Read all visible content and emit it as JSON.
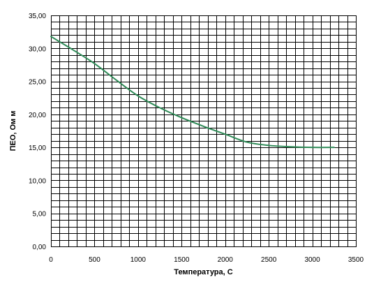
{
  "chart_data": {
    "type": "line",
    "title": "",
    "xlabel": "Температура, С",
    "ylabel": "ПЕО, Ом м",
    "xlim": [
      0,
      3500
    ],
    "ylim": [
      0,
      35
    ],
    "x_ticks": [
      "0",
      "500",
      "1000",
      "1500",
      "2000",
      "2500",
      "3000",
      "3500"
    ],
    "y_ticks": [
      "0,00",
      "5,00",
      "10,00",
      "15,00",
      "20,00",
      "25,00",
      "30,00",
      "35,00"
    ],
    "grid": true,
    "legend": "none",
    "series": [
      {
        "color": "#2e8b57",
        "x": [
          0,
          100,
          250,
          500,
          750,
          1000,
          1250,
          1500,
          1750,
          2000,
          2250,
          2500,
          2750,
          3000,
          3250
        ],
        "y": [
          31.8,
          31.0,
          29.8,
          27.7,
          25.2,
          22.8,
          21.0,
          19.5,
          18.2,
          17.0,
          15.8,
          15.3,
          15.1,
          15.0,
          15.0
        ]
      }
    ],
    "colors": {
      "grid": "#000000",
      "plot_background": "#ffffff",
      "line": "#2e8b57"
    }
  }
}
